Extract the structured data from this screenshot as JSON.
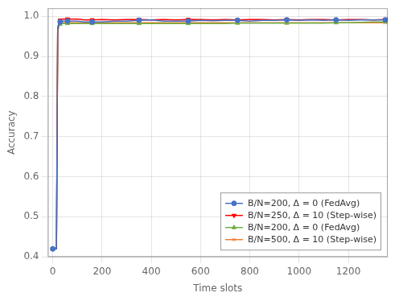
{
  "chart_data": {
    "type": "line",
    "xlabel": "Time slots",
    "ylabel": "Accuracy",
    "xlim": [
      -20,
      1360
    ],
    "ylim": [
      0.4,
      1.02
    ],
    "xticks": [
      0,
      200,
      400,
      600,
      800,
      1000,
      1200
    ],
    "yticks": [
      0.4,
      0.5,
      0.6,
      0.7,
      0.8,
      0.9,
      {
        "value": 1.0,
        "label": "1.0"
      }
    ],
    "grid": true,
    "legend": "lower right",
    "x": [
      0,
      15,
      20,
      25,
      30,
      35,
      40,
      50,
      60,
      80,
      100,
      130,
      160,
      200,
      250,
      300,
      350,
      400,
      450,
      500,
      550,
      600,
      650,
      700,
      750,
      800,
      850,
      900,
      950,
      1000,
      1050,
      1100,
      1150,
      1200,
      1250,
      1300,
      1350
    ],
    "series": [
      {
        "name": "B/N=200, Δ = 0 (FedAvg)",
        "color": "#4472c4",
        "marker": "circle",
        "values": [
          0.42,
          0.42,
          0.97,
          0.982,
          0.986,
          0.987,
          0.988,
          0.988,
          0.988,
          0.988,
          0.988,
          0.986,
          0.986,
          0.986,
          0.988,
          0.988,
          0.99,
          0.991,
          0.988,
          0.988,
          0.988,
          0.99,
          0.989,
          0.99,
          0.99,
          0.988,
          0.99,
          0.99,
          0.991,
          0.99,
          0.991,
          0.99,
          0.991,
          0.99,
          0.991,
          0.991,
          0.991
        ]
      },
      {
        "name": "B/N=250, Δ = 10 (Step-wise)",
        "color": "#ff0000",
        "marker": "triangle-down",
        "values": [
          0.42,
          0.42,
          0.968,
          0.986,
          0.99,
          0.992,
          0.993,
          0.993,
          0.993,
          0.993,
          0.993,
          0.991,
          0.991,
          0.992,
          0.991,
          0.992,
          0.992,
          0.991,
          0.992,
          0.991,
          0.992,
          0.992,
          0.991,
          0.992,
          0.991,
          0.992,
          0.992,
          0.991,
          0.992,
          0.991,
          0.992,
          0.992,
          0.991,
          0.992,
          0.992,
          0.991,
          0.992
        ]
      },
      {
        "name": "B/N=200, Δ = 0 (FedAvg)",
        "color": "#70ad47",
        "marker": "triangle-up",
        "values": [
          0.42,
          0.42,
          0.96,
          0.976,
          0.98,
          0.981,
          0.982,
          0.982,
          0.982,
          0.982,
          0.982,
          0.982,
          0.982,
          0.982,
          0.982,
          0.982,
          0.982,
          0.982,
          0.982,
          0.982,
          0.982,
          0.982,
          0.982,
          0.982,
          0.983,
          0.983,
          0.983,
          0.983,
          0.983,
          0.983,
          0.983,
          0.983,
          0.984,
          0.984,
          0.985,
          0.986,
          0.986
        ]
      },
      {
        "name": "B/N=500, Δ = 10 (Step-wise)",
        "color": "#ed7d31",
        "marker": "x",
        "values": [
          0.42,
          0.42,
          0.963,
          0.98,
          0.983,
          0.984,
          0.984,
          0.984,
          0.984,
          0.984,
          0.984,
          0.984,
          0.984,
          0.984,
          0.984,
          0.984,
          0.984,
          0.984,
          0.984,
          0.984,
          0.984,
          0.984,
          0.984,
          0.984,
          0.984,
          0.984,
          0.984,
          0.984,
          0.984,
          0.984,
          0.984,
          0.984,
          0.984,
          0.984,
          0.984,
          0.984,
          0.984
        ]
      }
    ]
  }
}
